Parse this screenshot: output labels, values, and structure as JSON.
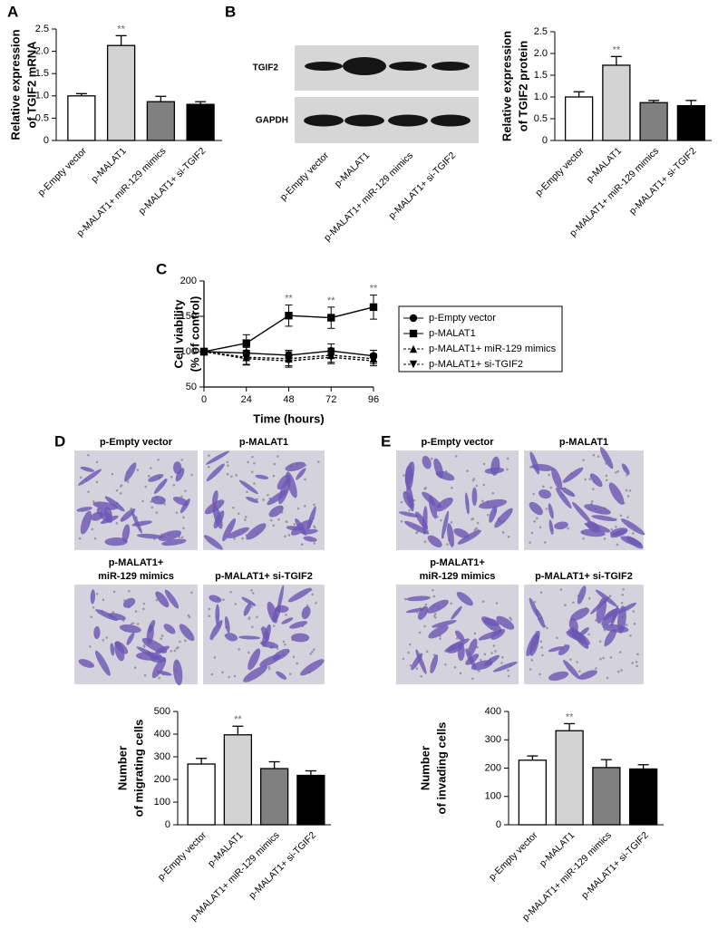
{
  "panel_labels": [
    "A",
    "B",
    "C",
    "D",
    "E"
  ],
  "blot": {
    "rows": [
      "TGIF2",
      "GAPDH"
    ],
    "lanes": [
      "p-Empty vector",
      "p-MALAT1",
      "p-MALAT1+ miR-129 mimics",
      "p-MALAT1+ si-TGIF2"
    ]
  },
  "micrographs": {
    "D": [
      [
        "p-Empty vector"
      ],
      [
        "p-MALAT1"
      ],
      [
        "p-MALAT1+",
        "miR-129 mimics"
      ],
      [
        "p-MALAT1+ si-TGIF2"
      ]
    ],
    "E": [
      [
        "p-Empty vector"
      ],
      [
        "p-MALAT1"
      ],
      [
        "p-MALAT1+",
        "miR-129 mimics"
      ],
      [
        "p-MALAT1+ si-TGIF2"
      ]
    ]
  },
  "chart_data": [
    {
      "type": "bar",
      "ylabel": [
        "Relative expression",
        "of TGIF2 mRNA"
      ],
      "categories": [
        "p-Empty vector",
        "p-MALAT1",
        "p-MALAT1+ miR-129 mimics",
        "p-MALAT1+ si-TGIF2"
      ],
      "values": [
        1.0,
        2.13,
        0.87,
        0.81
      ],
      "errors": [
        0.05,
        0.22,
        0.12,
        0.06
      ],
      "colors": [
        "#ffffff",
        "#d3d3d3",
        "#808080",
        "#000000"
      ],
      "ylim": [
        0,
        2.5
      ],
      "yticks": [
        0,
        0.5,
        {
          "value": 1,
          "label": "1.0"
        },
        1.5,
        {
          "value": 2,
          "label": "2.0"
        },
        2.5
      ],
      "annotations": [
        {
          "text": "**",
          "x": "p-MALAT1"
        }
      ]
    },
    {
      "type": "bar",
      "ylabel": [
        "Relative expression",
        "of TGIF2 protein"
      ],
      "categories": [
        "p-Empty vector",
        "p-MALAT1",
        "p-MALAT1+ miR-129 mimics",
        "p-MALAT1+ si-TGIF2"
      ],
      "values": [
        1.0,
        1.73,
        0.87,
        0.8
      ],
      "errors": [
        0.12,
        0.2,
        0.05,
        0.12
      ],
      "colors": [
        "#ffffff",
        "#d3d3d3",
        "#808080",
        "#000000"
      ],
      "ylim": [
        0,
        2.5
      ],
      "yticks": [
        0,
        0.5,
        {
          "value": 1,
          "label": "1.0"
        },
        1.5,
        {
          "value": 2,
          "label": "2.0"
        },
        2.5
      ],
      "annotations": [
        {
          "text": "**",
          "x": "p-MALAT1"
        }
      ]
    },
    {
      "type": "line",
      "xlabel": "Time (hours)",
      "ylabel": [
        "Cell viability",
        "(% of control)"
      ],
      "x": [
        0,
        24,
        48,
        72,
        96
      ],
      "xlim": [
        0,
        96
      ],
      "xticks": [
        0,
        24,
        48,
        72,
        96
      ],
      "ylim": [
        50,
        200
      ],
      "yticks": [
        50,
        100,
        150,
        200
      ],
      "legend": "right",
      "series": [
        {
          "name": "p-Empty vector",
          "color": "#000000",
          "marker": "circle",
          "dash": false,
          "values": [
            100,
            98,
            95,
            101,
            94
          ],
          "errors": [
            2,
            8,
            7,
            10,
            8
          ]
        },
        {
          "name": "p-MALAT1",
          "color": "#000000",
          "marker": "square",
          "dash": false,
          "values": [
            100,
            112,
            151,
            148,
            163
          ],
          "errors": [
            2,
            12,
            15,
            15,
            17
          ]
        },
        {
          "name": "p-MALAT1+ miR-129 mimics",
          "color": "#000000",
          "marker": "triangle-up",
          "dash": true,
          "values": [
            100,
            92,
            90,
            95,
            90
          ],
          "errors": [
            2,
            10,
            10,
            10,
            7
          ]
        },
        {
          "name": "p-MALAT1+ si-TGIF2",
          "color": "#000000",
          "marker": "triangle-down",
          "dash": true,
          "values": [
            100,
            90,
            87,
            92,
            87
          ],
          "errors": [
            2,
            9,
            9,
            9,
            7
          ]
        }
      ],
      "annotations": [
        {
          "text": "**",
          "x": 48
        },
        {
          "text": "**",
          "x": 72
        },
        {
          "text": "**",
          "x": 96
        }
      ]
    },
    {
      "type": "bar",
      "ylabel": [
        "Number",
        "of migrating cells"
      ],
      "categories": [
        "p-Empty vector",
        "p-MALAT1",
        "p-MALAT1+ miR-129 mimics",
        "p-MALAT1+ si-TGIF2"
      ],
      "values": [
        268,
        397,
        248,
        218
      ],
      "errors": [
        25,
        38,
        30,
        20
      ],
      "colors": [
        "#ffffff",
        "#d3d3d3",
        "#808080",
        "#000000"
      ],
      "ylim": [
        0,
        500
      ],
      "yticks": [
        0,
        100,
        200,
        300,
        400,
        500
      ],
      "annotations": [
        {
          "text": "**",
          "x": "p-MALAT1"
        }
      ]
    },
    {
      "type": "bar",
      "ylabel": [
        "Number",
        "of invading cells"
      ],
      "categories": [
        "p-Empty vector",
        "p-MALAT1",
        "p-MALAT1+ miR-129 mimics",
        "p-MALAT1+ si-TGIF2"
      ],
      "values": [
        228,
        332,
        202,
        197
      ],
      "errors": [
        15,
        25,
        28,
        15
      ],
      "colors": [
        "#ffffff",
        "#d3d3d3",
        "#808080",
        "#000000"
      ],
      "ylim": [
        0,
        400
      ],
      "yticks": [
        0,
        100,
        200,
        300,
        400
      ],
      "annotations": [
        {
          "text": "**",
          "x": "p-MALAT1"
        }
      ]
    }
  ]
}
